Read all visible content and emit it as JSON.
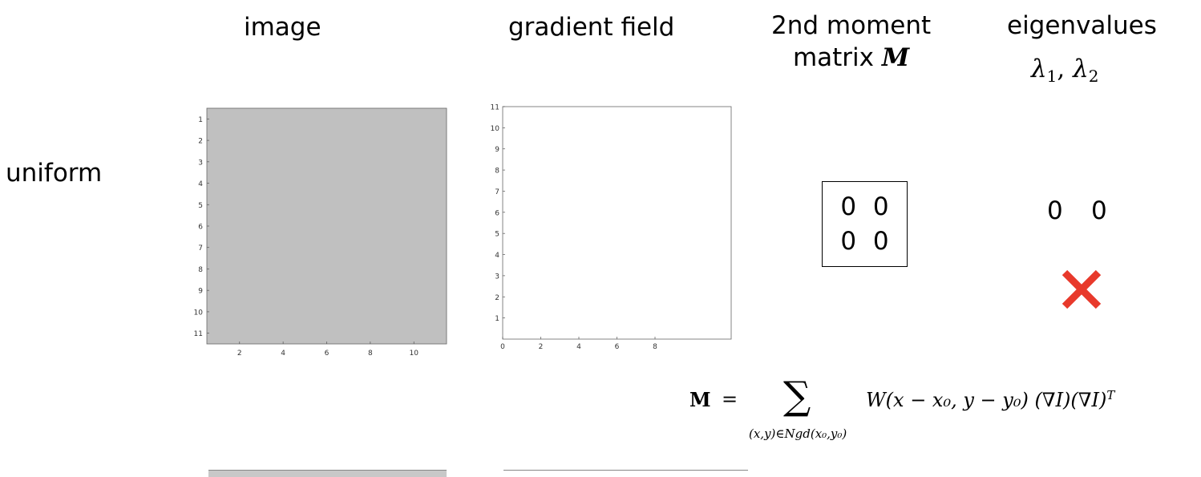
{
  "headers": {
    "image": "image",
    "gradient": "gradient field",
    "moment_line1": "2nd moment",
    "moment_line2": "matrix",
    "moment_symbol": "M",
    "eigen_line1": "eigenvalues",
    "eigen_symbol1": "λ",
    "eigen_sub1": "1",
    "eigen_sep": ", ",
    "eigen_symbol2": "λ",
    "eigen_sub2": "2"
  },
  "row": {
    "label": "uniform"
  },
  "image_plot": {
    "fill_color": "#c0c0c0",
    "y_ticks": [
      "1",
      "2",
      "3",
      "4",
      "5",
      "6",
      "7",
      "8",
      "9",
      "10",
      "11"
    ],
    "x_ticks": [
      "2",
      "4",
      "6",
      "8",
      "10"
    ]
  },
  "gradient_plot": {
    "y_ticks": [
      "1",
      "2",
      "3",
      "4",
      "5",
      "6",
      "7",
      "8",
      "9",
      "10",
      "11"
    ],
    "x_ticks": [
      "0",
      "2",
      "4",
      "6",
      "8"
    ]
  },
  "matrix": {
    "a": "0",
    "b": "0",
    "c": "0",
    "d": "0"
  },
  "eigenvalues": {
    "l1": "0",
    "l2": "0"
  },
  "status": {
    "icon": "cross-icon",
    "color": "#e8392b"
  },
  "formula": {
    "lhs": "M",
    "eq": "=",
    "sum": "∑",
    "under": "(x,y)∈Ngd(x₀,y₀)",
    "rhs": "W(x − x₀, y − y₀) (∇I)(∇I)",
    "sup": "T"
  }
}
